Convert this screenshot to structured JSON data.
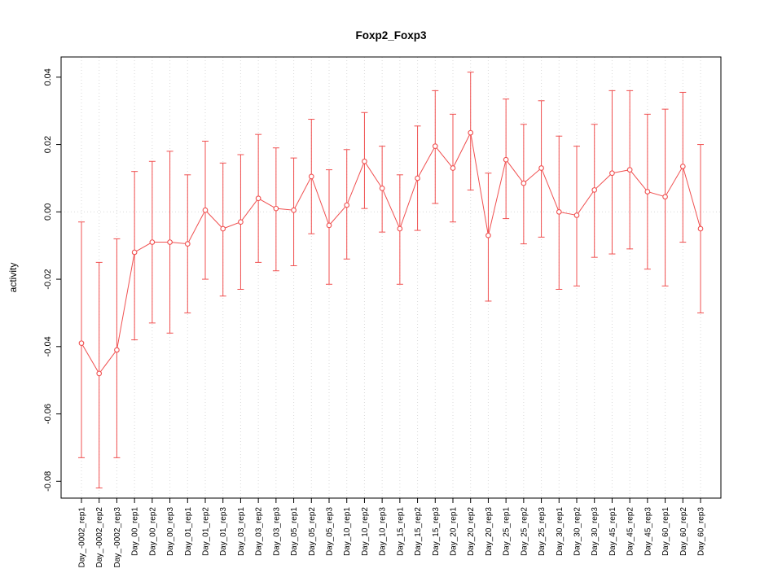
{
  "chart_data": {
    "type": "line",
    "title": "Foxp2_Foxp3",
    "ylabel": "activity",
    "xlabel": "",
    "ylim": [
      -0.085,
      0.046
    ],
    "yticks": [
      0.04,
      0.02,
      0,
      -0.02,
      -0.04,
      -0.06,
      -0.08
    ],
    "ytick_labels": [
      "0.04",
      "0.02",
      "0.00",
      "-0.02",
      "-0.04",
      "-0.06",
      "-0.08"
    ],
    "legend_position": "none",
    "grid": "dotted vertical line at each category, dotted horizontal line at y=0",
    "colors": {
      "series": "#f05050",
      "grid": "#d9d9d9",
      "frame": "#000000",
      "background": "#ffffff"
    },
    "categories": [
      "Day_-0002_rep1",
      "Day_-0002_rep2",
      "Day_-0002_rep3",
      "Day_00_rep1",
      "Day_00_rep2",
      "Day_00_rep3",
      "Day_01_rep1",
      "Day_01_rep2",
      "Day_01_rep3",
      "Day_03_rep1",
      "Day_03_rep2",
      "Day_03_rep3",
      "Day_05_rep1",
      "Day_05_rep2",
      "Day_05_rep3",
      "Day_10_rep1",
      "Day_10_rep2",
      "Day_10_rep3",
      "Day_15_rep1",
      "Day_15_rep2",
      "Day_15_rep3",
      "Day_20_rep1",
      "Day_20_rep2",
      "Day_20_rep3",
      "Day_25_rep1",
      "Day_25_rep2",
      "Day_25_rep3",
      "Day_30_rep1",
      "Day_30_rep2",
      "Day_30_rep3",
      "Day_45_rep1",
      "Day_45_rep2",
      "Day_45_rep3",
      "Day_60_rep1",
      "Day_60_rep2",
      "Day_60_rep3"
    ],
    "series": [
      {
        "name": "activity",
        "marker": "open-circle",
        "means": [
          -0.039,
          -0.048,
          -0.041,
          -0.012,
          -0.009,
          -0.009,
          -0.0095,
          0.0005,
          -0.005,
          -0.003,
          0.004,
          0.001,
          0.0005,
          0.0105,
          -0.004,
          0.002,
          0.015,
          0.007,
          -0.005,
          0.01,
          0.0195,
          0.013,
          0.0235,
          -0.007,
          0.0155,
          0.0085,
          0.013,
          0.0,
          -0.001,
          0.0065,
          0.0115,
          0.0125,
          0.006,
          0.0045,
          0.0135,
          -0.005
        ],
        "upper": [
          -0.003,
          -0.015,
          -0.008,
          0.012,
          0.015,
          0.018,
          0.011,
          0.021,
          0.0145,
          0.017,
          0.023,
          0.019,
          0.016,
          0.0275,
          0.0125,
          0.0185,
          0.0295,
          0.0195,
          0.011,
          0.0255,
          0.036,
          0.029,
          0.0415,
          0.0115,
          0.0335,
          0.026,
          0.033,
          0.0225,
          0.0195,
          0.026,
          0.036,
          0.036,
          0.029,
          0.0305,
          0.0355,
          0.02
        ],
        "lower": [
          -0.073,
          -0.082,
          -0.073,
          -0.038,
          -0.033,
          -0.036,
          -0.03,
          -0.02,
          -0.025,
          -0.023,
          -0.015,
          -0.0175,
          -0.016,
          -0.0065,
          -0.0215,
          -0.014,
          0.001,
          -0.006,
          -0.0215,
          -0.0055,
          0.0025,
          -0.003,
          0.0065,
          -0.0265,
          -0.002,
          -0.0095,
          -0.0075,
          -0.023,
          -0.022,
          -0.0135,
          -0.0125,
          -0.011,
          -0.017,
          -0.022,
          -0.009,
          -0.03
        ]
      }
    ]
  }
}
